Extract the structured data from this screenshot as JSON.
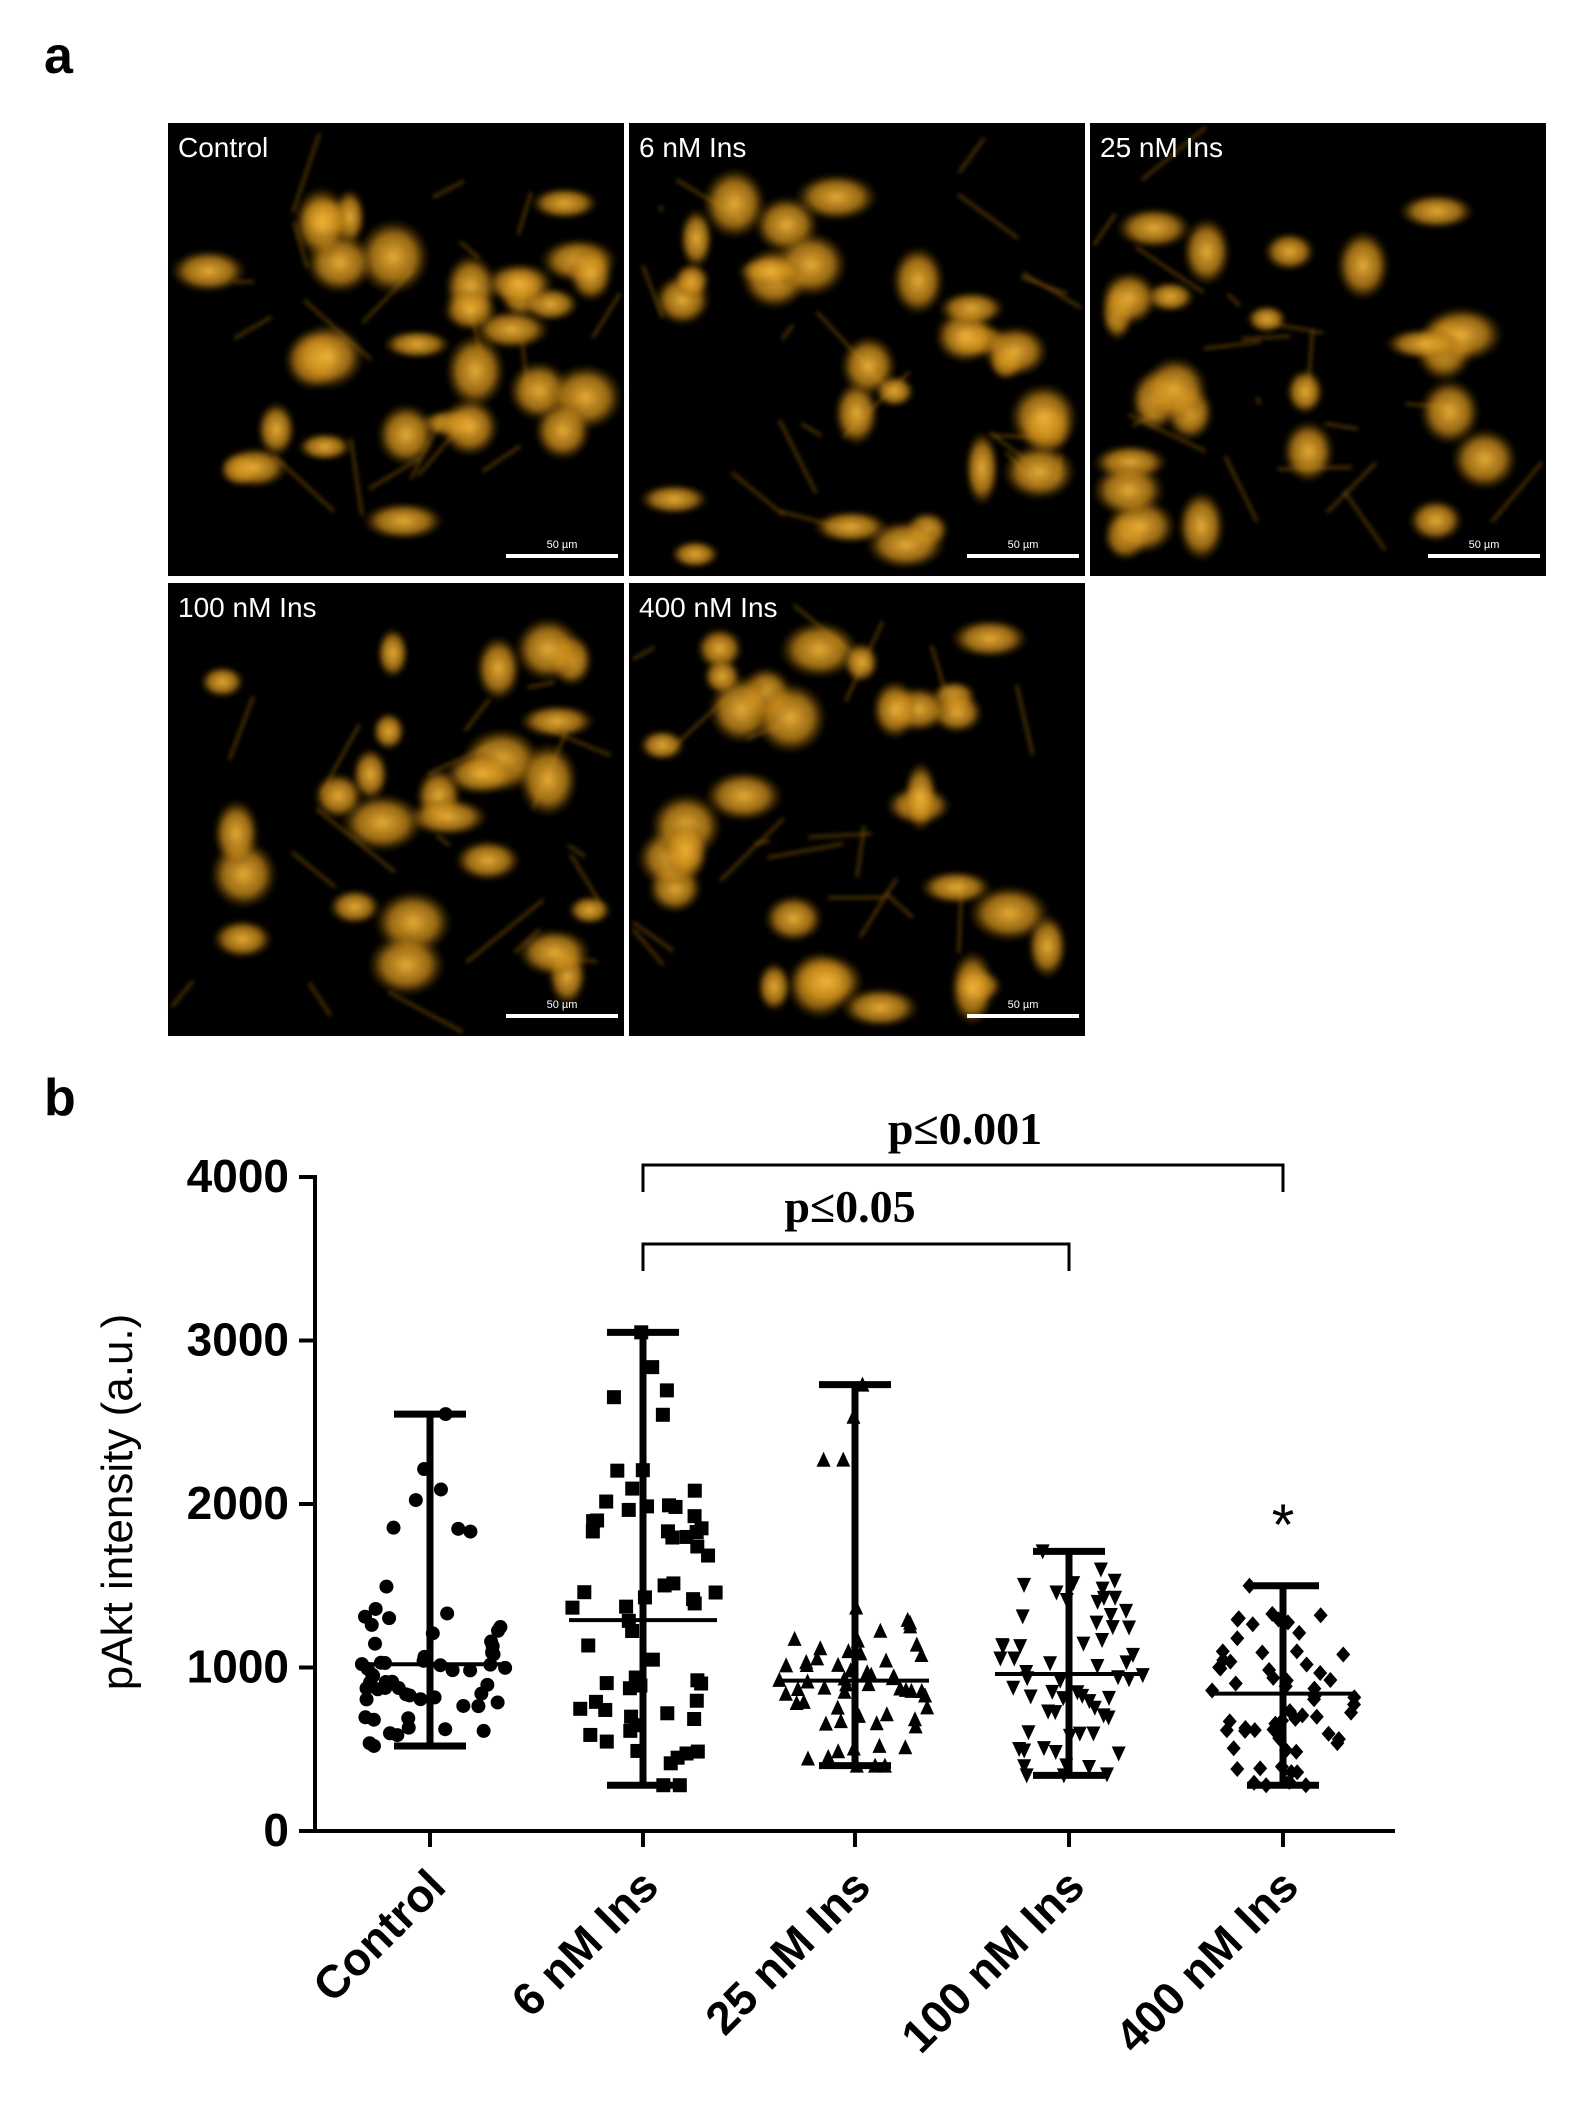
{
  "panel_a": {
    "letter": "a",
    "images": [
      {
        "label": "Control",
        "scalebar": "50 µm"
      },
      {
        "label": "6 nM Ins",
        "scalebar": "50 µm"
      },
      {
        "label": "25 nM Ins",
        "scalebar": "50 µm"
      },
      {
        "label": "100 nM Ins",
        "scalebar": "50 µm"
      },
      {
        "label": "400 nM Ins",
        "scalebar": "50 µm"
      }
    ]
  },
  "panel_b": {
    "letter": "b"
  },
  "chart_data": {
    "type": "scatter",
    "xlabel": "",
    "ylabel": "pAkt intensity (a.u.)",
    "ylim": [
      0,
      4000
    ],
    "yticks": [
      0,
      1000,
      2000,
      3000,
      4000
    ],
    "categories": [
      "Control",
      "6 nM Ins",
      "25 nM Ins",
      "100 nM Ins",
      "400 nM Ins"
    ],
    "series": [
      {
        "category": "Control",
        "marker": "circle",
        "median": 1020,
        "min": 520,
        "max": 2550
      },
      {
        "category": "6 nM Ins",
        "marker": "square",
        "median": 1290,
        "min": 280,
        "max": 3050
      },
      {
        "category": "25 nM Ins",
        "marker": "triangle-up",
        "median": 920,
        "min": 400,
        "max": 2730
      },
      {
        "category": "100 nM Ins",
        "marker": "triangle-down",
        "median": 960,
        "min": 340,
        "max": 1710
      },
      {
        "category": "400 nM Ins",
        "marker": "diamond",
        "median": 840,
        "min": 280,
        "max": 1500
      }
    ],
    "significance": [
      {
        "from": "6 nM Ins",
        "to": "25 nM Ins",
        "label": "",
        "hidden": true
      },
      {
        "from": "6 nM Ins",
        "to": "100 nM Ins",
        "label": "p≤0.05"
      },
      {
        "from": "6 nM Ins",
        "to": "400 nM Ins",
        "label": "p≤0.001"
      }
    ],
    "annotations": [
      {
        "category": "400 nM Ins",
        "text": "*"
      }
    ],
    "grid": false,
    "legend": "none"
  },
  "colors": {
    "axis": "#000000",
    "marker": "#000000",
    "micrograph_bg": "#000000",
    "cell_stain": "#e8a020"
  }
}
